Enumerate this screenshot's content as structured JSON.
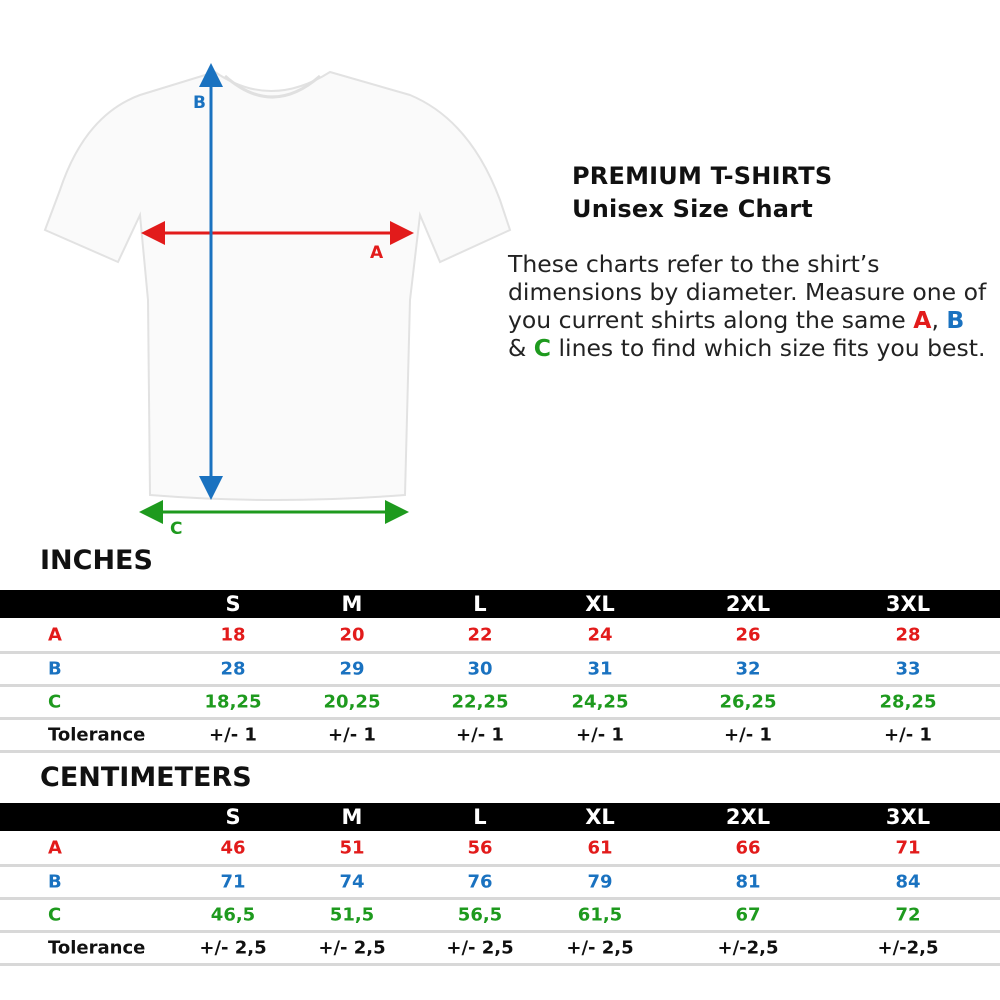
{
  "diagram": {
    "labels": {
      "a": "A",
      "b": "B",
      "c": "C"
    }
  },
  "colors": {
    "a": "#e21b1b",
    "b": "#1a72c0",
    "c": "#1e9a1e"
  },
  "heading": {
    "line1": "PREMIUM T-SHIRTS",
    "line2": "Unisex Size Chart"
  },
  "description": {
    "p1": "These charts refer to the shirt’s dimensions by diameter. Measure one of you current shirts along the same ",
    "a": "A",
    "sep1": ", ",
    "b": "B",
    "sep2": " & ",
    "c": "C",
    "p2": " lines to find which size fits you best."
  },
  "sizes": [
    "S",
    "M",
    "L",
    "XL",
    "2XL",
    "3XL"
  ],
  "inches": {
    "title": "INCHES",
    "rows": [
      {
        "label": "A",
        "values": [
          "18",
          "20",
          "22",
          "24",
          "26",
          "28"
        ]
      },
      {
        "label": "B",
        "values": [
          "28",
          "29",
          "30",
          "31",
          "32",
          "33"
        ]
      },
      {
        "label": "C",
        "values": [
          "18,25",
          "20,25",
          "22,25",
          "24,25",
          "26,25",
          "28,25"
        ]
      },
      {
        "label": "Tolerance",
        "values": [
          "+/- 1",
          "+/- 1",
          "+/- 1",
          "+/- 1",
          "+/- 1",
          "+/- 1"
        ]
      }
    ]
  },
  "centimeters": {
    "title": "CENTIMETERS",
    "rows": [
      {
        "label": "A",
        "values": [
          "46",
          "51",
          "56",
          "61",
          "66",
          "71"
        ]
      },
      {
        "label": "B",
        "values": [
          "71",
          "74",
          "76",
          "79",
          "81",
          "84"
        ]
      },
      {
        "label": "C",
        "values": [
          "46,5",
          "51,5",
          "56,5",
          "61,5",
          "67",
          "72"
        ]
      },
      {
        "label": "Tolerance",
        "values": [
          "+/- 2,5",
          "+/- 2,5",
          "+/- 2,5",
          "+/- 2,5",
          "+/-2,5",
          "+/-2,5"
        ]
      }
    ]
  }
}
